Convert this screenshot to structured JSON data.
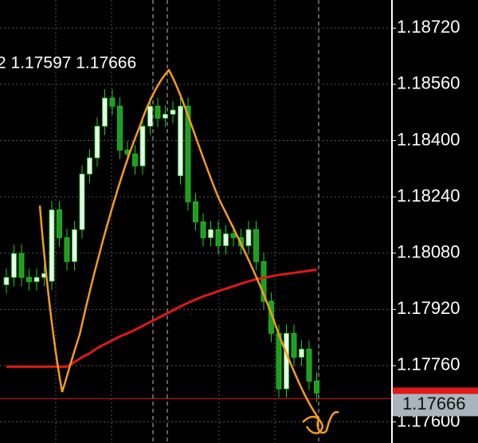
{
  "chart_data": {
    "type": "candlestick",
    "header_text": "2 1.17597 1.17666",
    "ylim": [
      1.1754,
      1.188
    ],
    "yticks": [
      {
        "value": 1.1872,
        "label": "1.18720"
      },
      {
        "value": 1.1856,
        "label": "1.18560"
      },
      {
        "value": 1.184,
        "label": "1.18400"
      },
      {
        "value": 1.1824,
        "label": "1.18240"
      },
      {
        "value": 1.1808,
        "label": "1.18080"
      },
      {
        "value": 1.1792,
        "label": "1.17920"
      },
      {
        "value": 1.1776,
        "label": "1.17760"
      },
      {
        "value": 1.176,
        "label": "1.17600"
      }
    ],
    "grid": true,
    "up_color": "#e6ffe6",
    "down_color": "#1e9e1e",
    "wick_color": "#22cc22",
    "open": [
      1.1799,
      1.18011,
      1.18079,
      1.18011,
      1.17999,
      1.18011,
      1.18,
      1.18203,
      1.18124,
      1.18056,
      1.18147,
      1.18305,
      1.18351,
      1.18441,
      1.18521,
      1.18498,
      1.18373,
      1.18362,
      1.18328,
      1.18441,
      1.18498,
      1.18464,
      1.18475,
      1.183,
      1.18498,
      1.18226,
      1.18169,
      1.18124,
      1.18147,
      1.18101,
      1.18135,
      1.18124,
      1.18101,
      1.18147,
      1.18056,
      1.17943,
      1.17852,
      1.17694,
      1.17852,
      1.17784,
      1.17807,
      1.17716
    ],
    "high": [
      1.18036,
      1.18104,
      1.18104,
      1.18036,
      1.18036,
      1.18047,
      1.18228,
      1.18228,
      1.18149,
      1.18172,
      1.1833,
      1.18376,
      1.18466,
      1.18546,
      1.18546,
      1.18523,
      1.18398,
      1.18387,
      1.18466,
      1.18523,
      1.18523,
      1.185,
      1.18512,
      1.18523,
      1.18523,
      1.18251,
      1.18194,
      1.18172,
      1.18172,
      1.1816,
      1.1816,
      1.18149,
      1.18172,
      1.18172,
      1.18081,
      1.17968,
      1.17877,
      1.17877,
      1.17877,
      1.17832,
      1.17832,
      1.17741
    ],
    "low": [
      1.17965,
      1.17986,
      1.17986,
      1.17974,
      1.17974,
      1.17986,
      1.17975,
      1.18099,
      1.18031,
      1.18031,
      1.18122,
      1.1828,
      1.18326,
      1.18416,
      1.18473,
      1.18348,
      1.18337,
      1.18303,
      1.18303,
      1.18416,
      1.18439,
      1.18439,
      1.1845,
      1.18275,
      1.18201,
      1.18144,
      1.18099,
      1.18099,
      1.18076,
      1.18076,
      1.18099,
      1.18076,
      1.18076,
      1.18031,
      1.17918,
      1.17827,
      1.17669,
      1.17669,
      1.17759,
      1.17759,
      1.17691,
      1.17657
    ],
    "close": [
      1.18011,
      1.18079,
      1.18011,
      1.17999,
      1.18011,
      1.18022,
      1.18203,
      1.18124,
      1.18056,
      1.18147,
      1.18305,
      1.18351,
      1.18441,
      1.18521,
      1.18498,
      1.18373,
      1.18362,
      1.18328,
      1.18441,
      1.18498,
      1.18464,
      1.18475,
      1.18487,
      1.18498,
      1.18226,
      1.18169,
      1.18124,
      1.18147,
      1.18101,
      1.18135,
      1.18124,
      1.18101,
      1.18147,
      1.18056,
      1.17943,
      1.17852,
      1.17694,
      1.17852,
      1.17784,
      1.17807,
      1.17716,
      1.17682
    ],
    "moving_average": {
      "color": "#e01818",
      "values": [
        1.17757,
        1.17757,
        1.17757,
        1.17757,
        1.17757,
        1.17757,
        1.17757,
        1.17757,
        1.17757,
        1.1777,
        1.17784,
        1.17795,
        1.1781,
        1.17821,
        1.17832,
        1.17843,
        1.17852,
        1.17862,
        1.17873,
        1.17884,
        1.17895,
        1.17906,
        1.17917,
        1.17928,
        1.17939,
        1.17948,
        1.17957,
        1.17964,
        1.17972,
        1.17979,
        1.17986,
        1.17993,
        1.18,
        1.18006,
        1.1801,
        1.18014,
        1.18018,
        1.18021,
        1.18024,
        1.18027,
        1.1803,
        1.18033
      ]
    },
    "current_price": 1.17666,
    "current_price_color": "#e01818"
  }
}
